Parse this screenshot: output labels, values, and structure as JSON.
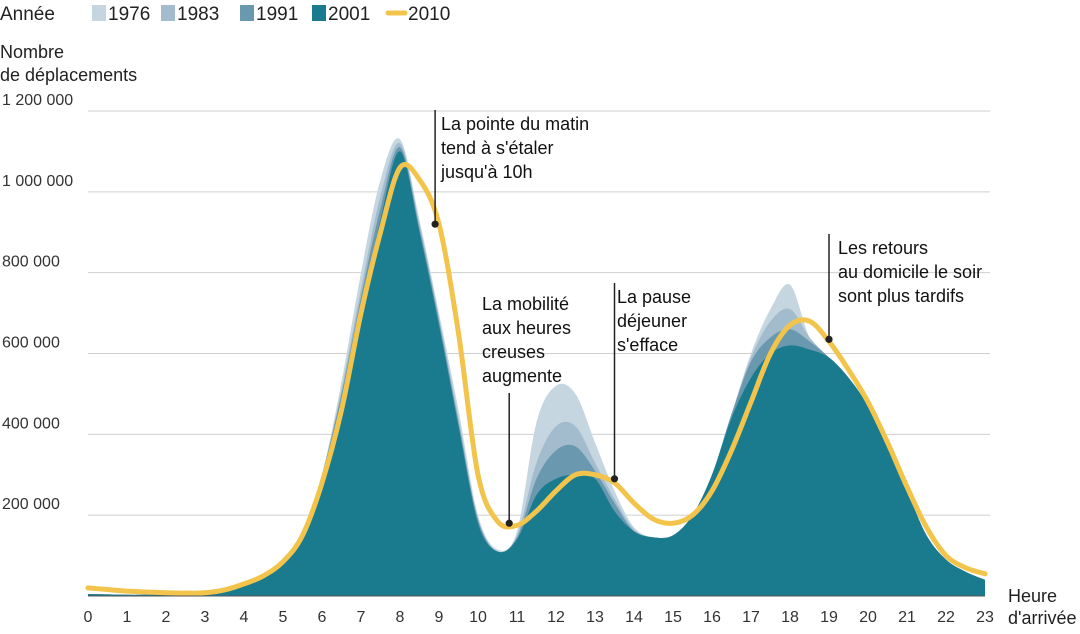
{
  "chart_data": {
    "type": "area",
    "legend_title": "Année",
    "ylabel": [
      "Nombre",
      "de déplacements"
    ],
    "xlabel": [
      "Heure",
      "d'arrivée"
    ],
    "xlim": [
      0,
      23
    ],
    "ylim": [
      0,
      1200000
    ],
    "x_ticks": [
      0,
      1,
      2,
      3,
      4,
      5,
      6,
      7,
      8,
      9,
      10,
      11,
      12,
      13,
      14,
      15,
      16,
      17,
      18,
      19,
      20,
      21,
      22,
      23
    ],
    "y_ticks": [
      200000,
      400000,
      600000,
      800000,
      1000000,
      1200000
    ],
    "y_tick_labels": [
      "200 000",
      "400 000",
      "600 000",
      "800 000",
      "1 000 000",
      "1 200 000"
    ],
    "grid": "horizontal",
    "legend_position": "top-left",
    "colors": {
      "1976": "#c6d6e1",
      "1983": "#a3bccd",
      "1991": "#6a98ae",
      "2001": "#1a7b8f",
      "2010": "#f2c44b"
    },
    "x": [
      0,
      0.5,
      1,
      1.5,
      2,
      2.5,
      3,
      3.5,
      4,
      4.5,
      5,
      5.5,
      6,
      6.5,
      7,
      7.5,
      8,
      8.5,
      9,
      9.5,
      10,
      10.5,
      11,
      11.5,
      12,
      12.5,
      13,
      13.5,
      14,
      14.5,
      15,
      15.5,
      16,
      16.5,
      17,
      17.5,
      18,
      18.5,
      19,
      19.5,
      20,
      20.5,
      21,
      21.5,
      22,
      22.5,
      23
    ],
    "series": [
      {
        "name": "1976",
        "kind": "area",
        "values": [
          5000,
          4000,
          3000,
          3000,
          3000,
          3000,
          5000,
          12000,
          25000,
          45000,
          80000,
          150000,
          300000,
          530000,
          800000,
          1030000,
          1130000,
          930000,
          700000,
          460000,
          200000,
          115000,
          160000,
          430000,
          520000,
          500000,
          380000,
          260000,
          170000,
          145000,
          150000,
          200000,
          300000,
          450000,
          600000,
          710000,
          770000,
          640000,
          590000,
          540000,
          470000,
          370000,
          260000,
          150000,
          90000,
          60000,
          40000
        ]
      },
      {
        "name": "1983",
        "kind": "area",
        "values": [
          5000,
          4000,
          3000,
          3000,
          3000,
          3000,
          5000,
          12000,
          25000,
          45000,
          80000,
          150000,
          300000,
          510000,
          760000,
          990000,
          1120000,
          920000,
          690000,
          440000,
          190000,
          110000,
          150000,
          330000,
          420000,
          420000,
          330000,
          240000,
          165000,
          145000,
          150000,
          200000,
          300000,
          450000,
          590000,
          680000,
          710000,
          640000,
          590000,
          540000,
          470000,
          370000,
          260000,
          150000,
          90000,
          60000,
          40000
        ]
      },
      {
        "name": "1991",
        "kind": "area",
        "values": [
          5000,
          4000,
          3000,
          3000,
          3000,
          3000,
          5000,
          12000,
          25000,
          45000,
          80000,
          150000,
          300000,
          500000,
          740000,
          960000,
          1110000,
          910000,
          680000,
          430000,
          190000,
          110000,
          145000,
          290000,
          360000,
          370000,
          310000,
          230000,
          160000,
          145000,
          150000,
          200000,
          300000,
          450000,
          580000,
          640000,
          660000,
          630000,
          590000,
          540000,
          470000,
          370000,
          260000,
          150000,
          90000,
          60000,
          40000
        ]
      },
      {
        "name": "2001",
        "kind": "area",
        "values": [
          5000,
          4000,
          3000,
          3000,
          3000,
          3000,
          5000,
          12000,
          25000,
          45000,
          80000,
          150000,
          300000,
          480000,
          710000,
          930000,
          1100000,
          900000,
          670000,
          420000,
          180000,
          110000,
          140000,
          250000,
          290000,
          300000,
          290000,
          210000,
          160000,
          145000,
          150000,
          200000,
          300000,
          440000,
          540000,
          600000,
          620000,
          610000,
          590000,
          540000,
          470000,
          370000,
          260000,
          150000,
          90000,
          60000,
          40000
        ]
      },
      {
        "name": "2010",
        "kind": "line",
        "values": [
          20000,
          16000,
          12000,
          10000,
          8000,
          7000,
          8000,
          15000,
          30000,
          50000,
          85000,
          150000,
          280000,
          460000,
          700000,
          900000,
          1060000,
          1030000,
          920000,
          650000,
          300000,
          185000,
          175000,
          210000,
          260000,
          300000,
          300000,
          280000,
          230000,
          190000,
          180000,
          200000,
          260000,
          360000,
          480000,
          600000,
          670000,
          680000,
          630000,
          560000,
          480000,
          380000,
          270000,
          170000,
          100000,
          70000,
          55000
        ]
      }
    ],
    "annotations": [
      {
        "text": [
          "La pointe du matin",
          "tend à s'étaler",
          "jusqu'à 10h"
        ],
        "point": [
          8.9,
          920000
        ],
        "text_above": true
      },
      {
        "text": [
          "La mobilité",
          "aux heures",
          "creuses",
          "augmente"
        ],
        "point": [
          10.8,
          180000
        ],
        "text_above": true
      },
      {
        "text": [
          "La pause",
          "déjeuner",
          "s'efface"
        ],
        "point": [
          13.5,
          290000
        ],
        "text_above": true
      },
      {
        "text": [
          "Les retours",
          "au domicile le soir",
          "sont plus tardifs"
        ],
        "point": [
          19,
          635000
        ],
        "text_above": true
      }
    ]
  }
}
